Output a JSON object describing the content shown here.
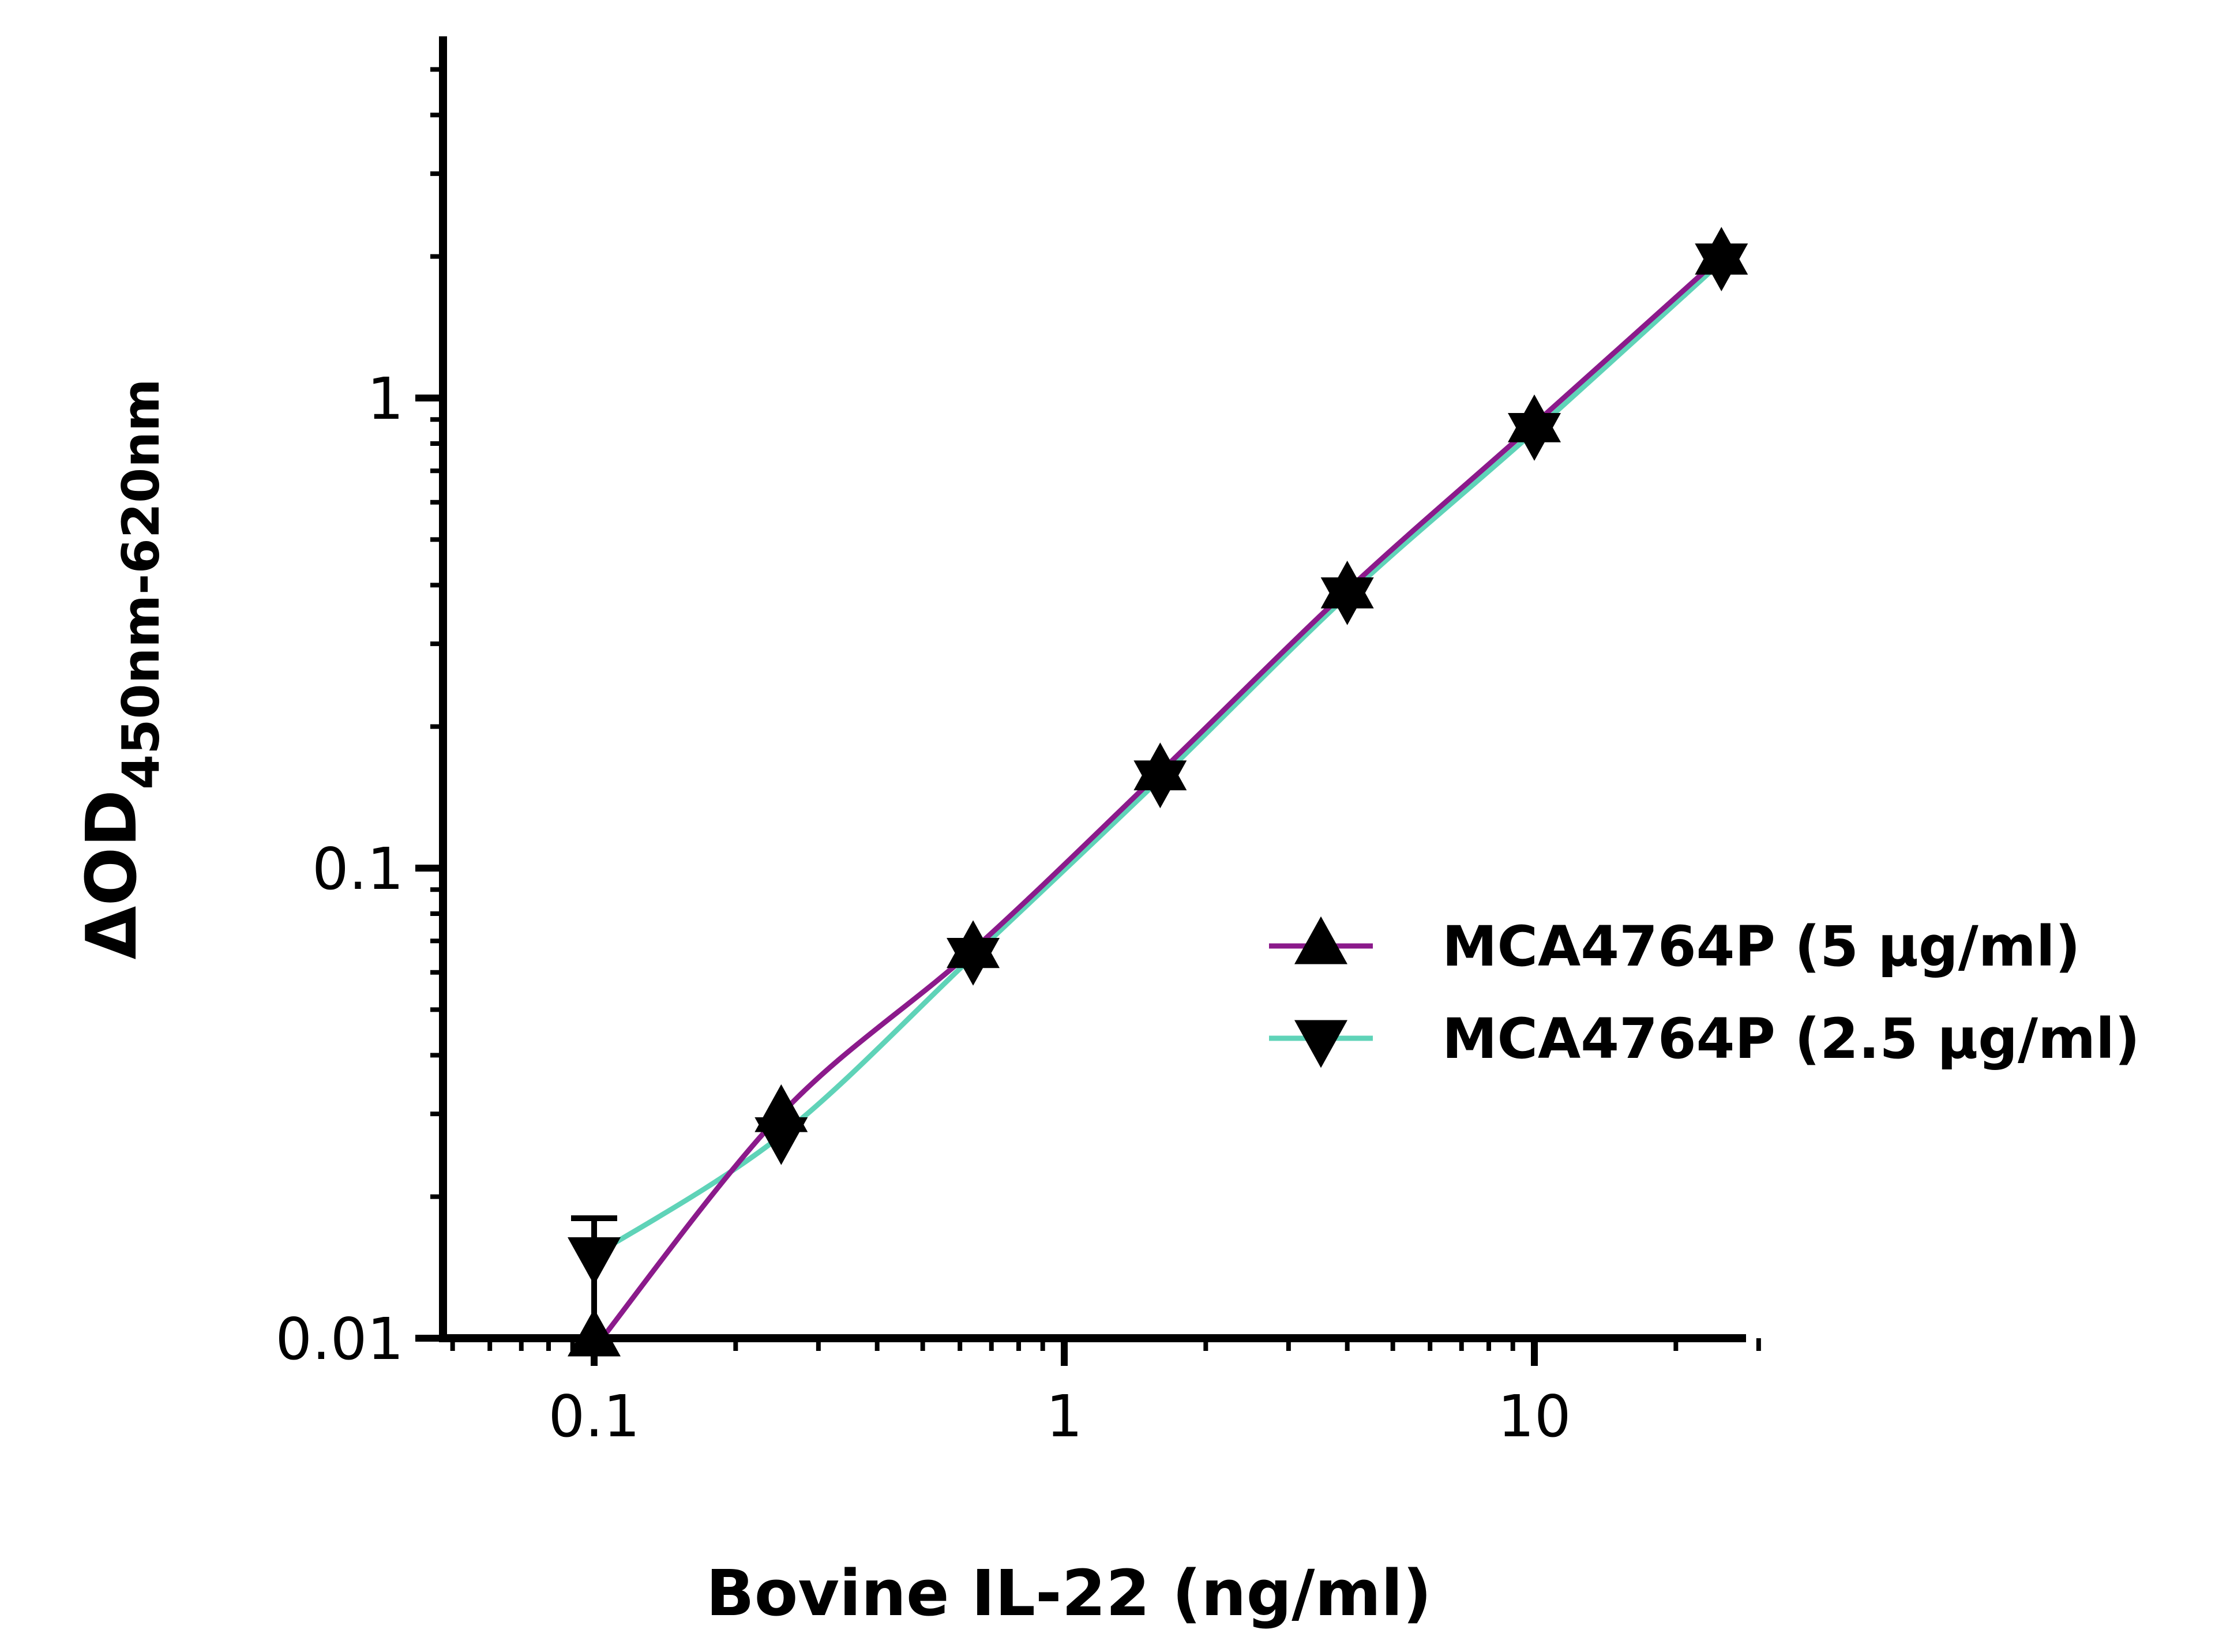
{
  "chart_data": {
    "type": "line",
    "title": "",
    "xlabel": "Bovine IL-22 (ng/ml)",
    "ylabel": {
      "prefix": "ΔOD",
      "subscript": "450nm-620nm"
    },
    "x_scale": "log",
    "y_scale": "log",
    "xlim": [
      0.05,
      32
    ],
    "ylim": [
      0.01,
      6
    ],
    "x_ticks": [
      {
        "value": 0.1,
        "label": "0.1"
      },
      {
        "value": 1,
        "label": "1"
      },
      {
        "value": 10,
        "label": "10"
      }
    ],
    "y_ticks": [
      {
        "value": 0.01,
        "label": "0.01"
      },
      {
        "value": 0.1,
        "label": "0.1"
      },
      {
        "value": 1,
        "label": "1"
      }
    ],
    "grid": false,
    "legend_position": "right-middle",
    "x": [
      0.1,
      0.25,
      0.64,
      1.6,
      4,
      10,
      25
    ],
    "series": [
      {
        "name": "MCA4764P (5 μg/ml)",
        "marker": "triangle-up",
        "line_color": "#8b1a8b",
        "values": [
          0.0095,
          0.03,
          0.067,
          0.16,
          0.39,
          0.88,
          2.0
        ],
        "error_high": [
          0.018,
          null,
          null,
          null,
          null,
          null,
          null
        ]
      },
      {
        "name": "MCA4764P (2.5 μg/ml)",
        "marker": "triangle-down",
        "line_color": "#5fd3b8",
        "values": [
          0.015,
          0.027,
          0.065,
          0.155,
          0.38,
          0.85,
          1.95
        ],
        "error_low": [
          0.01,
          null,
          null,
          null,
          null,
          null,
          null
        ]
      }
    ]
  }
}
